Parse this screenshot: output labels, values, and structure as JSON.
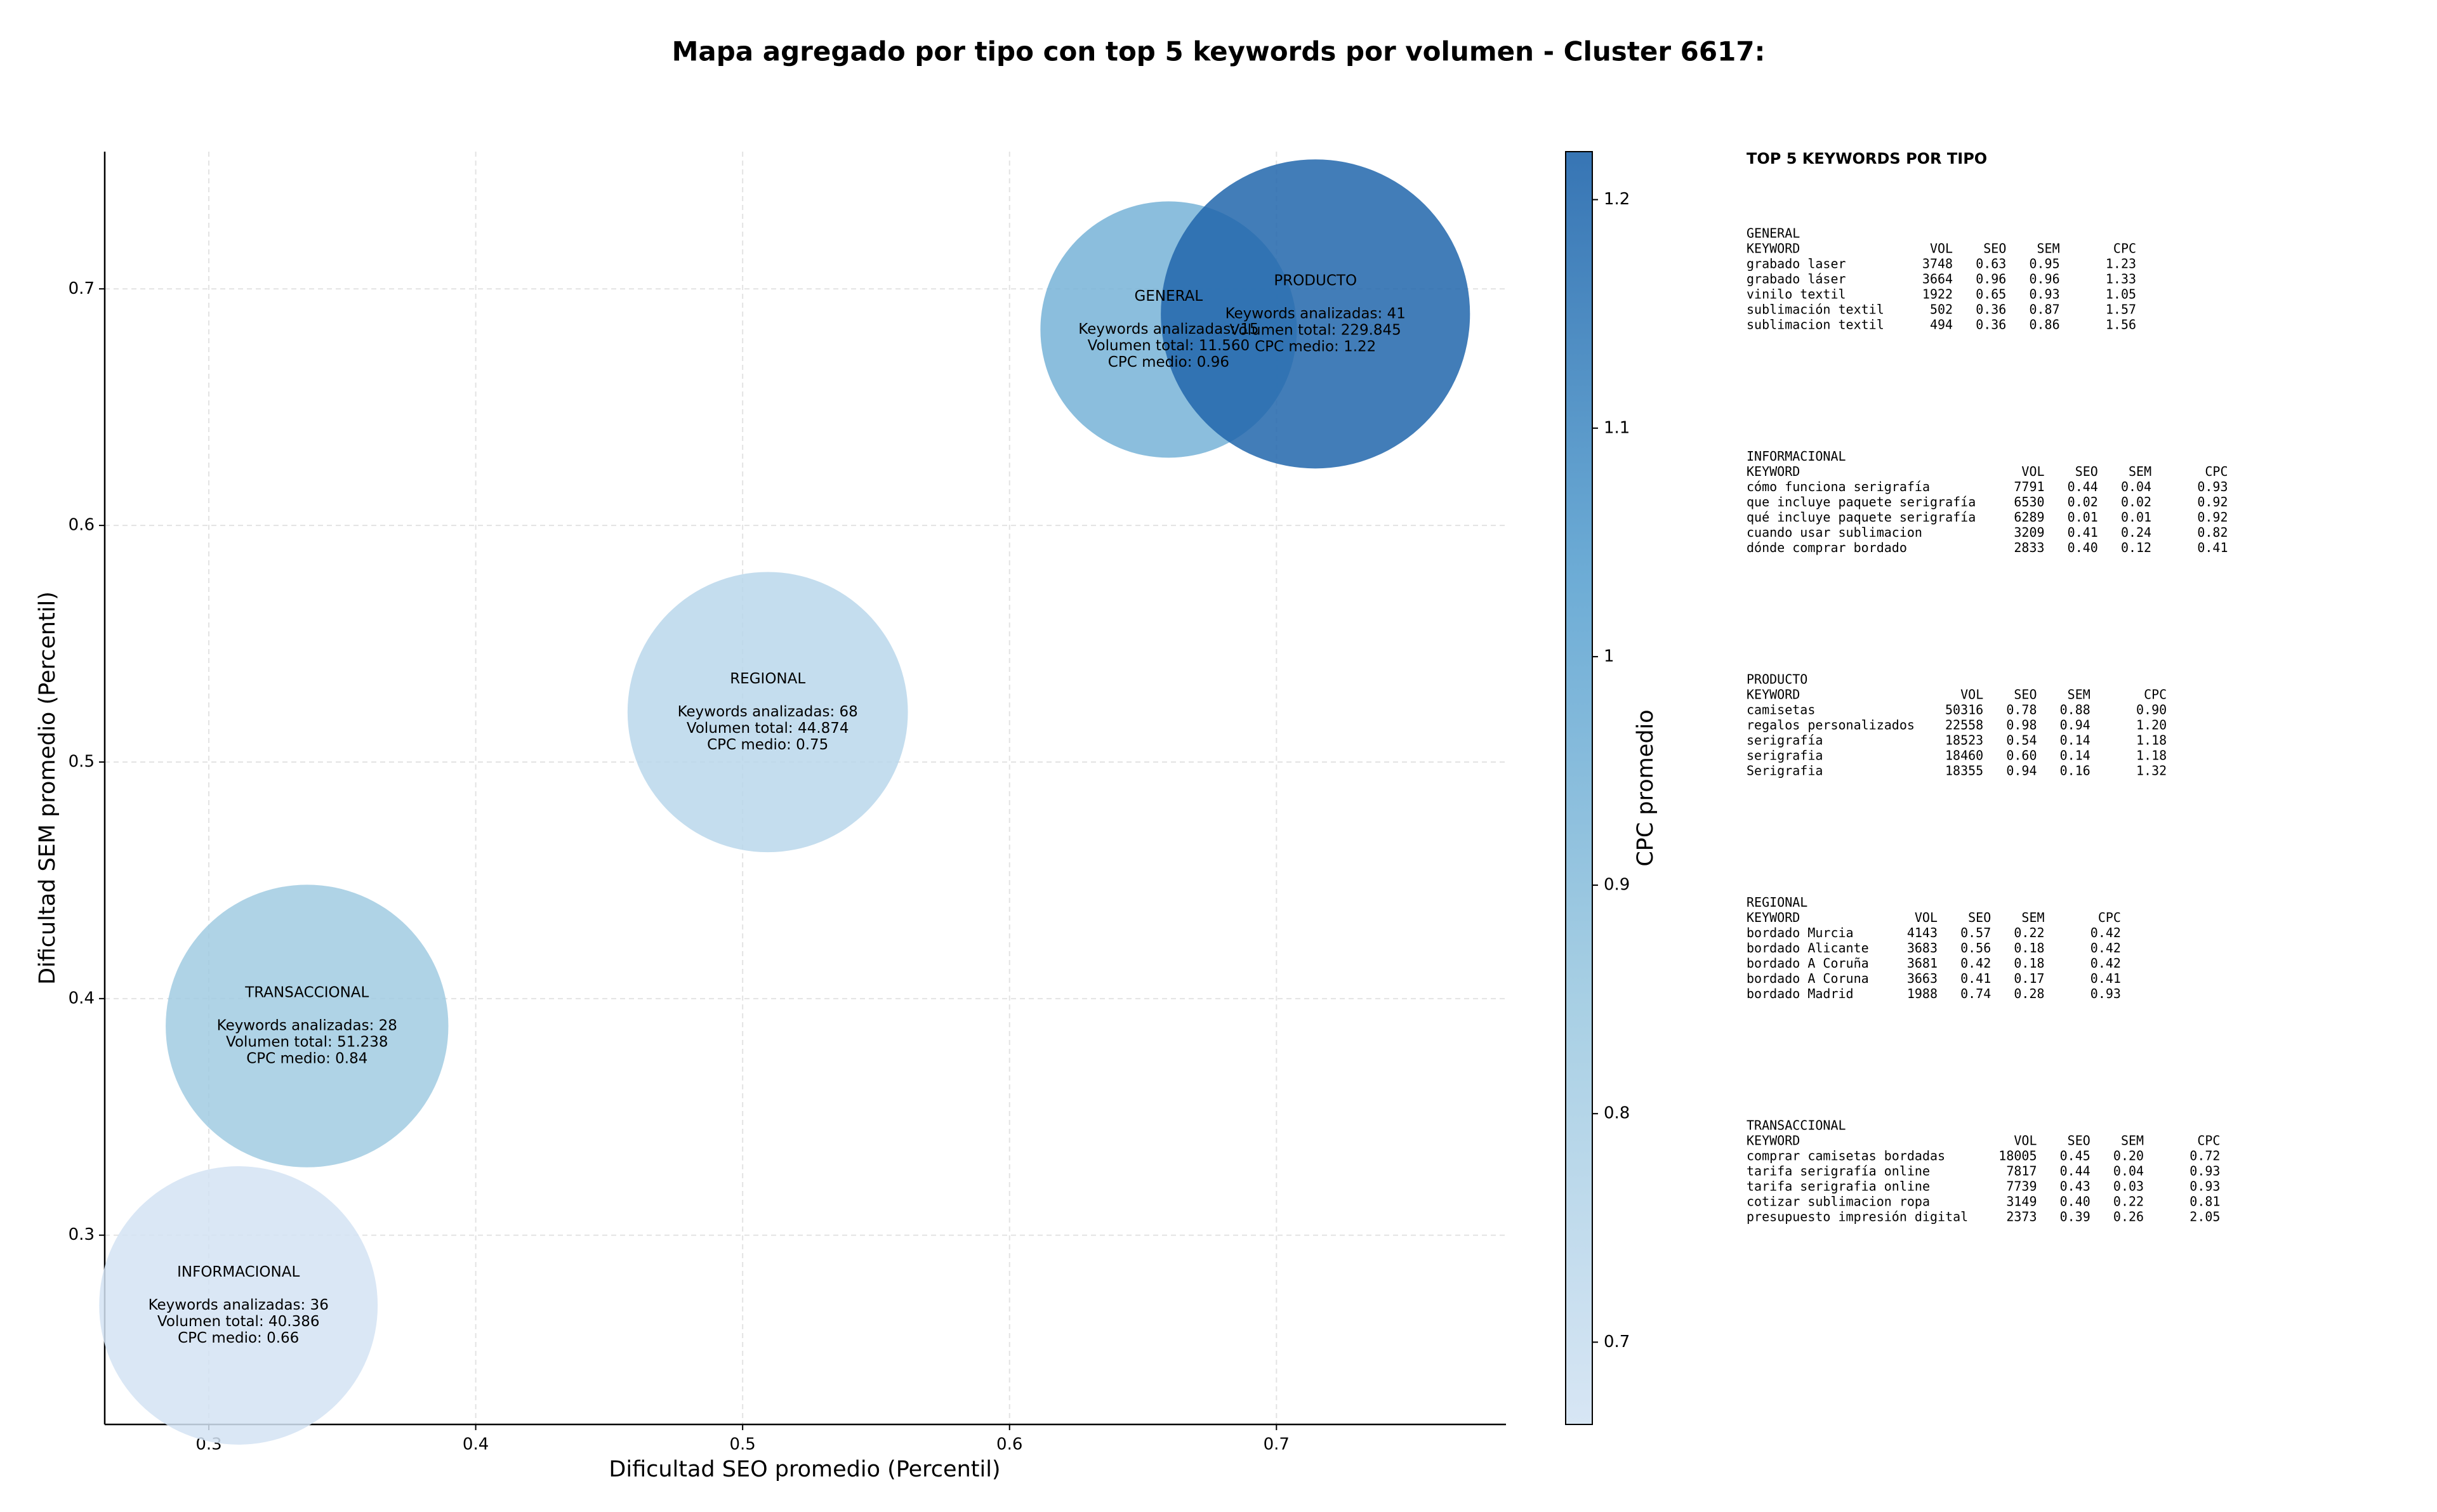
{
  "chart_data": {
    "type": "bubble",
    "title": "Mapa agregado por tipo con top 5 keywords por volumen - Cluster 6617:",
    "x_label": "Dificultad SEO promedio (Percentil)",
    "y_label": "Dificultad SEM promedio (Percentil)",
    "xlim": [
      0.261,
      0.786
    ],
    "ylim": [
      0.22,
      0.758
    ],
    "xticks": [
      0.3,
      0.4,
      0.5,
      0.6,
      0.7
    ],
    "yticks": [
      0.3,
      0.4,
      0.5,
      0.6,
      0.7
    ],
    "grid": true,
    "colorbar": {
      "label": "CPC promedio",
      "lim": [
        0.664,
        1.221
      ],
      "ticks": [
        0.7,
        0.8,
        0.9,
        1.0,
        1.1,
        1.2
      ],
      "colormap": [
        "#d3e3f3",
        "#9ecae1",
        "#5da3d1",
        "#2166ac"
      ]
    },
    "series": [
      {
        "name": "GENERAL",
        "x": 0.6596,
        "y": 0.6828,
        "size": 11560,
        "cpc": 0.96,
        "lines": [
          "Keywords analizadas: 15",
          "Volumen total: 11.560",
          "CPC medio: 0.96"
        ]
      },
      {
        "name": "INFORMACIONAL",
        "x": 0.3111,
        "y": 0.2703,
        "size": 40386,
        "cpc": 0.66,
        "lines": [
          "Keywords analizadas: 36",
          "Volumen total: 40.386",
          "CPC medio: 0.66"
        ]
      },
      {
        "name": "PRODUCTO",
        "x": 0.7146,
        "y": 0.6894,
        "size": 229845,
        "cpc": 1.22,
        "lines": [
          "Keywords analizadas: 41",
          "Volumen total: 229.845",
          "CPC medio: 1.22"
        ]
      },
      {
        "name": "REGIONAL",
        "x": 0.5094,
        "y": 0.5211,
        "size": 44874,
        "cpc": 0.75,
        "lines": [
          "Keywords analizadas: 68",
          "Volumen total: 44.874",
          "CPC medio: 0.75"
        ]
      },
      {
        "name": "TRANSACCIONAL",
        "x": 0.3368,
        "y": 0.3884,
        "size": 51238,
        "cpc": 0.84,
        "lines": [
          "Keywords analizadas: 28",
          "Volumen total: 51.238",
          "CPC medio: 0.84"
        ]
      }
    ],
    "panel": {
      "title": "TOP 5 KEYWORDS POR TIPO",
      "groups": [
        {
          "name": "GENERAL",
          "columns": [
            "KEYWORD",
            "VOL",
            "SEO",
            "SEM",
            "CPC"
          ],
          "rows": [
            [
              "grabado laser",
              "3748",
              "0.63",
              "0.95",
              "1.23"
            ],
            [
              "grabado láser",
              "3664",
              "0.96",
              "0.96",
              "1.33"
            ],
            [
              "vinilo textil",
              "1922",
              "0.65",
              "0.93",
              "1.05"
            ],
            [
              "sublimación textil",
              "502",
              "0.36",
              "0.87",
              "1.57"
            ],
            [
              "sublimacion textil",
              "494",
              "0.36",
              "0.86",
              "1.56"
            ]
          ]
        },
        {
          "name": "INFORMACIONAL",
          "columns": [
            "KEYWORD",
            "VOL",
            "SEO",
            "SEM",
            "CPC"
          ],
          "rows": [
            [
              "cómo funciona serigrafía",
              "7791",
              "0.44",
              "0.04",
              "0.93"
            ],
            [
              "que incluye paquete serigrafía",
              "6530",
              "0.02",
              "0.02",
              "0.92"
            ],
            [
              "qué incluye paquete serigrafía",
              "6289",
              "0.01",
              "0.01",
              "0.92"
            ],
            [
              "cuando usar sublimacion",
              "3209",
              "0.41",
              "0.24",
              "0.82"
            ],
            [
              "dónde comprar bordado",
              "2833",
              "0.40",
              "0.12",
              "0.41"
            ]
          ]
        },
        {
          "name": "PRODUCTO",
          "columns": [
            "KEYWORD",
            "VOL",
            "SEO",
            "SEM",
            "CPC"
          ],
          "rows": [
            [
              "camisetas",
              "50316",
              "0.78",
              "0.88",
              "0.90"
            ],
            [
              "regalos personalizados",
              "22558",
              "0.98",
              "0.94",
              "1.20"
            ],
            [
              "serigrafía",
              "18523",
              "0.54",
              "0.14",
              "1.18"
            ],
            [
              "serigrafia",
              "18460",
              "0.60",
              "0.14",
              "1.18"
            ],
            [
              "Serigrafia",
              "18355",
              "0.94",
              "0.16",
              "1.32"
            ]
          ]
        },
        {
          "name": "REGIONAL",
          "columns": [
            "KEYWORD",
            "VOL",
            "SEO",
            "SEM",
            "CPC"
          ],
          "rows": [
            [
              "bordado Murcia",
              "4143",
              "0.57",
              "0.22",
              "0.42"
            ],
            [
              "bordado Alicante",
              "3683",
              "0.56",
              "0.18",
              "0.42"
            ],
            [
              "bordado A Coruña",
              "3681",
              "0.42",
              "0.18",
              "0.42"
            ],
            [
              "bordado A Coruna",
              "3663",
              "0.41",
              "0.17",
              "0.41"
            ],
            [
              "bordado Madrid",
              "1988",
              "0.74",
              "0.28",
              "0.93"
            ]
          ]
        },
        {
          "name": "TRANSACCIONAL",
          "columns": [
            "KEYWORD",
            "VOL",
            "SEO",
            "SEM",
            "CPC"
          ],
          "rows": [
            [
              "comprar camisetas bordadas",
              "18005",
              "0.45",
              "0.20",
              "0.72"
            ],
            [
              "tarifa serigrafía online",
              "7817",
              "0.44",
              "0.04",
              "0.93"
            ],
            [
              "tarifa serigrafia online",
              "7739",
              "0.43",
              "0.03",
              "0.93"
            ],
            [
              "cotizar sublimacion ropa",
              "3149",
              "0.40",
              "0.22",
              "0.81"
            ],
            [
              "presupuesto impresión digital",
              "2373",
              "0.39",
              "0.26",
              "2.05"
            ]
          ]
        }
      ]
    }
  }
}
